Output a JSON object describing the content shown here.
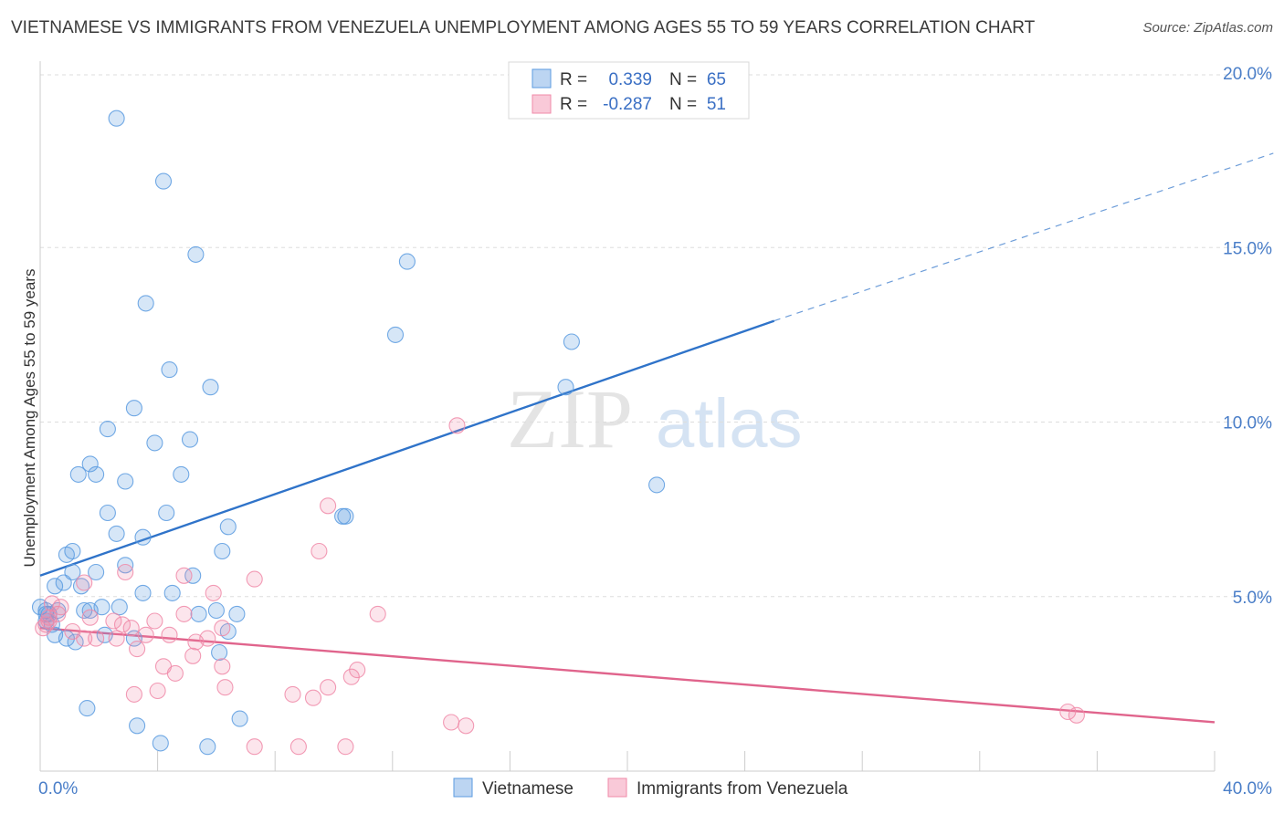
{
  "title": "VIETNAMESE VS IMMIGRANTS FROM VENEZUELA UNEMPLOYMENT AMONG AGES 55 TO 59 YEARS CORRELATION CHART",
  "source": "Source: ZipAtlas.com",
  "watermark": {
    "zip": "ZIP",
    "atlas": "atlas"
  },
  "colors": {
    "blue": "#5b9be0",
    "blue_line": "#2f73c9",
    "pink": "#f08aa8",
    "pink_line": "#e0648c",
    "tick_text": "#4a7ec8",
    "grid": "#dddddd"
  },
  "legend": {
    "rows": [
      {
        "r_label": "R =",
        "r_value": "0.339",
        "n_label": "N =",
        "n_value": "65"
      },
      {
        "r_label": "R =",
        "r_value": "-0.287",
        "n_label": "N =",
        "n_value": "51"
      }
    ]
  },
  "chart_data": {
    "type": "scatter",
    "title": "VIETNAMESE VS IMMIGRANTS FROM VENEZUELA UNEMPLOYMENT AMONG AGES 55 TO 59 YEARS CORRELATION CHART",
    "xlabel": "",
    "ylabel": "Unemployment Among Ages 55 to 59 years",
    "xlim": [
      0,
      40
    ],
    "ylim": [
      0,
      20
    ],
    "x_tick_labels": [
      "0.0%",
      "40.0%"
    ],
    "y_ticks": [
      5,
      10,
      15,
      20
    ],
    "y_tick_labels": [
      "5.0%",
      "10.0%",
      "15.0%",
      "20.0%"
    ],
    "grid": true,
    "legend_position": "top-center",
    "series": [
      {
        "name": "Vietnamese",
        "color": "#5b9be0",
        "trend": {
          "x": [
            0,
            25
          ],
          "y": [
            5.6,
            12.9
          ],
          "dashed_to": [
            42,
            17.7
          ]
        },
        "points": [
          [
            2.6,
            18.7
          ],
          [
            4.2,
            16.9
          ],
          [
            5.3,
            14.8
          ],
          [
            3.6,
            13.4
          ],
          [
            12.5,
            14.6
          ],
          [
            12.1,
            12.5
          ],
          [
            18.1,
            12.3
          ],
          [
            4.4,
            11.5
          ],
          [
            5.8,
            11.0
          ],
          [
            17.9,
            11.0
          ],
          [
            3.2,
            10.4
          ],
          [
            2.3,
            9.8
          ],
          [
            3.9,
            9.4
          ],
          [
            5.1,
            9.5
          ],
          [
            1.7,
            8.8
          ],
          [
            1.3,
            8.5
          ],
          [
            1.9,
            8.5
          ],
          [
            4.8,
            8.5
          ],
          [
            2.9,
            8.3
          ],
          [
            21.0,
            8.2
          ],
          [
            2.3,
            7.4
          ],
          [
            4.3,
            7.4
          ],
          [
            10.3,
            7.3
          ],
          [
            10.4,
            7.3
          ],
          [
            6.4,
            7.0
          ],
          [
            2.6,
            6.8
          ],
          [
            3.5,
            6.7
          ],
          [
            1.1,
            6.3
          ],
          [
            6.2,
            6.3
          ],
          [
            0.9,
            6.2
          ],
          [
            1.1,
            5.7
          ],
          [
            1.9,
            5.7
          ],
          [
            2.9,
            5.9
          ],
          [
            5.2,
            5.6
          ],
          [
            0.8,
            5.4
          ],
          [
            1.4,
            5.3
          ],
          [
            0.5,
            5.3
          ],
          [
            3.5,
            5.1
          ],
          [
            4.5,
            5.1
          ],
          [
            2.7,
            4.7
          ],
          [
            2.1,
            4.7
          ],
          [
            1.5,
            4.6
          ],
          [
            1.7,
            4.6
          ],
          [
            0.2,
            4.6
          ],
          [
            0.6,
            4.6
          ],
          [
            0.2,
            4.5
          ],
          [
            0.3,
            4.5
          ],
          [
            5.4,
            4.5
          ],
          [
            6.0,
            4.6
          ],
          [
            6.7,
            4.5
          ],
          [
            0.2,
            4.3
          ],
          [
            0.4,
            4.2
          ],
          [
            6.4,
            4.0
          ],
          [
            0.5,
            3.9
          ],
          [
            2.2,
            3.9
          ],
          [
            3.2,
            3.8
          ],
          [
            0.9,
            3.8
          ],
          [
            1.2,
            3.7
          ],
          [
            6.1,
            3.4
          ],
          [
            1.6,
            1.8
          ],
          [
            6.8,
            1.5
          ],
          [
            3.3,
            1.3
          ],
          [
            4.1,
            0.8
          ],
          [
            5.7,
            0.7
          ],
          [
            0.0,
            4.7
          ]
        ]
      },
      {
        "name": "Immigrants from Venezuela",
        "color": "#f08aa8",
        "trend": {
          "x": [
            0,
            40
          ],
          "y": [
            4.1,
            1.4
          ]
        },
        "points": [
          [
            14.2,
            9.9
          ],
          [
            9.8,
            7.6
          ],
          [
            9.5,
            6.3
          ],
          [
            2.9,
            5.7
          ],
          [
            4.9,
            5.6
          ],
          [
            7.3,
            5.5
          ],
          [
            1.5,
            5.4
          ],
          [
            5.9,
            5.1
          ],
          [
            0.4,
            4.8
          ],
          [
            0.7,
            4.7
          ],
          [
            0.6,
            4.5
          ],
          [
            4.9,
            4.5
          ],
          [
            11.5,
            4.5
          ],
          [
            0.3,
            4.4
          ],
          [
            0.3,
            4.3
          ],
          [
            1.7,
            4.4
          ],
          [
            2.5,
            4.3
          ],
          [
            0.2,
            4.2
          ],
          [
            2.8,
            4.2
          ],
          [
            3.9,
            4.3
          ],
          [
            1.1,
            4.0
          ],
          [
            3.1,
            4.1
          ],
          [
            6.2,
            4.1
          ],
          [
            3.6,
            3.9
          ],
          [
            4.4,
            3.9
          ],
          [
            5.7,
            3.8
          ],
          [
            1.9,
            3.8
          ],
          [
            2.6,
            3.8
          ],
          [
            5.3,
            3.7
          ],
          [
            3.3,
            3.5
          ],
          [
            5.2,
            3.3
          ],
          [
            6.2,
            3.0
          ],
          [
            4.2,
            3.0
          ],
          [
            10.8,
            2.9
          ],
          [
            10.6,
            2.7
          ],
          [
            4.6,
            2.8
          ],
          [
            6.3,
            2.4
          ],
          [
            9.8,
            2.4
          ],
          [
            4.0,
            2.3
          ],
          [
            3.2,
            2.2
          ],
          [
            8.6,
            2.2
          ],
          [
            9.3,
            2.1
          ],
          [
            35.0,
            1.7
          ],
          [
            35.3,
            1.6
          ],
          [
            14.0,
            1.4
          ],
          [
            14.5,
            1.3
          ],
          [
            7.3,
            0.7
          ],
          [
            8.8,
            0.7
          ],
          [
            10.4,
            0.7
          ],
          [
            0.1,
            4.1
          ],
          [
            1.5,
            3.8
          ]
        ]
      }
    ]
  },
  "bottom_legend": [
    {
      "label": "Vietnamese",
      "color": "#5b9be0"
    },
    {
      "label": "Immigrants from Venezuela",
      "color": "#f08aa8"
    }
  ]
}
